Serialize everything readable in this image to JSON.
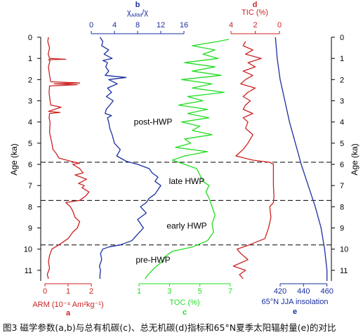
{
  "caption": "图3 磁学参数(a,b)与总有机碳(c)、总无机碳(d)指标和65°N夏季太阳辐射量(e)的对比",
  "colors": {
    "arm": "#cc2222",
    "chi": "#1a2fa0",
    "toc": "#22dd22",
    "tic": "#cc2222",
    "insolation": "#1a2fa0",
    "axis": "#000000"
  },
  "chart_data": {
    "type": "line",
    "shared_y": {
      "label": "Age (ka)",
      "range": [
        0,
        11.5
      ],
      "inverted": true,
      "ticks": [
        0,
        1,
        2,
        3,
        4,
        5,
        6,
        7,
        8,
        9,
        10,
        11
      ]
    },
    "panels": [
      {
        "letter": "a",
        "xlabel": "ARM (10⁻⁴ Am²kg⁻¹)",
        "xlim": [
          0,
          2
        ],
        "xticks": [
          0,
          1,
          2
        ],
        "axis_position": "bottom",
        "series": [
          {
            "age": [
              0.0,
              0.2,
              0.5,
              0.8,
              1.0,
              1.04,
              1.06,
              1.1,
              1.4,
              1.8,
              2.1,
              2.16,
              2.2,
              2.24,
              2.3,
              2.6,
              3.0,
              3.2,
              3.3,
              3.5,
              3.55,
              3.6,
              3.8,
              4.0,
              4.5,
              5.0,
              5.3,
              5.5,
              5.7,
              5.85,
              5.95,
              6.0,
              6.2,
              6.4,
              6.5,
              6.7,
              6.9,
              7.0,
              7.1,
              7.3,
              7.5,
              7.7,
              7.8,
              8.0,
              8.2,
              8.5,
              8.7,
              9.0,
              9.2,
              9.5,
              9.8,
              10.0,
              10.3,
              10.6,
              10.9,
              11.2,
              11.4
            ],
            "value": [
              0.15,
              0.12,
              0.2,
              0.14,
              0.2,
              0.9,
              0.15,
              0.22,
              0.15,
              0.2,
              0.25,
              1.5,
              0.4,
              1.4,
              0.2,
              0.18,
              0.22,
              0.25,
              0.7,
              0.15,
              0.65,
              0.2,
              0.18,
              0.22,
              0.2,
              0.3,
              0.35,
              0.5,
              0.6,
              1.1,
              1.5,
              1.2,
              1.5,
              1.65,
              1.3,
              1.8,
              1.45,
              1.7,
              1.6,
              1.9,
              1.75,
              1.5,
              0.9,
              1.1,
              1.2,
              1.3,
              1.5,
              1.4,
              1.2,
              1.0,
              0.6,
              0.3,
              0.2,
              0.15,
              0.2,
              0.1,
              0.15
            ]
          }
        ]
      },
      {
        "letter": "b",
        "xlabel": "χARM/χ",
        "xlim": [
          0,
          16
        ],
        "xticks": [
          0,
          4,
          8,
          12,
          16
        ],
        "axis_position": "top",
        "series": [
          {
            "age": [
              0.0,
              0.2,
              0.4,
              0.6,
              0.8,
              1.0,
              1.1,
              1.2,
              1.4,
              1.6,
              1.8,
              1.9,
              2.0,
              2.2,
              2.4,
              2.6,
              2.8,
              3.0,
              3.2,
              3.4,
              3.6,
              3.7,
              3.8,
              4.0,
              4.3,
              4.6,
              5.0,
              5.3,
              5.6,
              5.85,
              6.0,
              6.2,
              6.4,
              6.6,
              6.8,
              7.0,
              7.2,
              7.4,
              7.6,
              7.8,
              8.0,
              8.3,
              8.6,
              9.0,
              9.3,
              9.6,
              9.8,
              9.9,
              10.0,
              10.2,
              10.5,
              10.8,
              11.0,
              11.2,
              11.4
            ],
            "value": [
              1.5,
              2.0,
              1.8,
              3.0,
              2.2,
              3.6,
              2.0,
              2.8,
              2.5,
              3.0,
              2.4,
              6.0,
              3.0,
              4.5,
              2.8,
              3.5,
              2.6,
              3.8,
              3.2,
              2.6,
              2.4,
              3.5,
              2.8,
              3.0,
              3.2,
              3.6,
              4.0,
              5.0,
              4.4,
              6.0,
              8.0,
              10.0,
              10.5,
              11.5,
              11.0,
              12.0,
              11.5,
              11.0,
              10.0,
              9.5,
              8.5,
              9.5,
              8.0,
              9.0,
              8.0,
              7.0,
              5.0,
              3.0,
              2.0,
              1.6,
              1.8,
              1.4,
              1.6,
              1.5,
              1.5
            ]
          }
        ]
      },
      {
        "letter": "c",
        "xlabel": "TOC (%)",
        "xlim": [
          1,
          7
        ],
        "xticks": [
          1,
          3,
          5,
          7
        ],
        "axis_position": "bottom",
        "series": [
          {
            "age": [
              0.1,
              0.2,
              0.4,
              0.6,
              0.8,
              1.0,
              1.2,
              1.4,
              1.6,
              1.8,
              2.0,
              2.2,
              2.4,
              2.6,
              2.8,
              3.0,
              3.2,
              3.4,
              3.6,
              3.8,
              4.0,
              4.2,
              4.4,
              4.6,
              4.8,
              5.0,
              5.2,
              5.4,
              5.6,
              5.8,
              6.0,
              6.2,
              6.5,
              6.8,
              7.0,
              7.3,
              7.6,
              8.0,
              8.4,
              8.8,
              9.2,
              9.6,
              9.9,
              10.1,
              10.3,
              10.6,
              10.9,
              11.2,
              11.4
            ],
            "value": [
              6.9,
              6.2,
              4.5,
              6.0,
              5.2,
              6.2,
              4.0,
              6.0,
              4.5,
              6.4,
              3.8,
              5.8,
              4.5,
              6.6,
              4.2,
              5.2,
              3.6,
              5.5,
              4.2,
              5.6,
              3.8,
              5.0,
              4.5,
              5.8,
              4.0,
              4.4,
              3.4,
              5.5,
              4.0,
              3.2,
              4.0,
              4.8,
              5.0,
              5.2,
              5.6,
              5.4,
              5.6,
              5.8,
              6.0,
              5.8,
              5.9,
              5.5,
              4.5,
              3.2,
              2.8,
              2.5,
              2.0,
              1.6,
              1.4
            ]
          }
        ]
      },
      {
        "letter": "d",
        "xlabel": "TIC (%)",
        "xlim": [
          4,
          0
        ],
        "xticks": [
          4,
          2,
          0
        ],
        "axis_position": "top",
        "series": [
          {
            "age": [
              0.2,
              0.4,
              0.6,
              0.8,
              1.0,
              1.2,
              1.4,
              1.6,
              1.8,
              2.0,
              2.2,
              2.4,
              2.6,
              2.8,
              3.0,
              3.2,
              3.4,
              3.6,
              3.8,
              4.0,
              4.3,
              4.6,
              5.0,
              5.3,
              5.6,
              5.8,
              5.9,
              6.0,
              6.5,
              7.0,
              7.5,
              7.8,
              8.0,
              8.5,
              9.0,
              9.5,
              9.8,
              10.0,
              10.2,
              10.5,
              10.8,
              11.0,
              11.2,
              11.4
            ],
            "value": [
              2.8,
              3.0,
              2.2,
              2.8,
              1.5,
              2.6,
              2.0,
              3.0,
              2.2,
              2.8,
              3.2,
              2.0,
              2.6,
              3.0,
              2.4,
              2.8,
              3.0,
              2.2,
              3.0,
              2.6,
              2.8,
              2.2,
              2.6,
              3.0,
              3.6,
              2.2,
              0.8,
              0.5,
              0.5,
              0.5,
              0.45,
              0.5,
              0.8,
              0.7,
              0.9,
              1.2,
              2.5,
              3.5,
              3.2,
              2.6,
              3.8,
              2.8,
              3.3,
              3.0
            ]
          }
        ]
      },
      {
        "letter": "e",
        "xlabel": "65°N JJA insolation",
        "xlim": [
          405,
          465
        ],
        "xticks": [
          420,
          440,
          460
        ],
        "axis_position": "bottom",
        "series": [
          {
            "age": [
              0,
              1,
              2,
              3,
              4,
              5,
              6,
              7,
              8,
              9,
              10,
              11,
              11.5
            ],
            "value": [
              416,
              417.5,
              420,
              424,
              428,
              433,
              438,
              444,
              450,
              455,
              458,
              460,
              460
            ]
          }
        ]
      }
    ],
    "periods": [
      {
        "label": "post-HWP",
        "label_age": 4.0
      },
      {
        "label": "late HWP",
        "label_age": 6.8
      },
      {
        "label": "early HWP",
        "label_age": 8.9
      },
      {
        "label": "pre-HWP",
        "label_age": 10.5
      }
    ],
    "boundaries": [
      5.9,
      7.7,
      9.8
    ]
  }
}
